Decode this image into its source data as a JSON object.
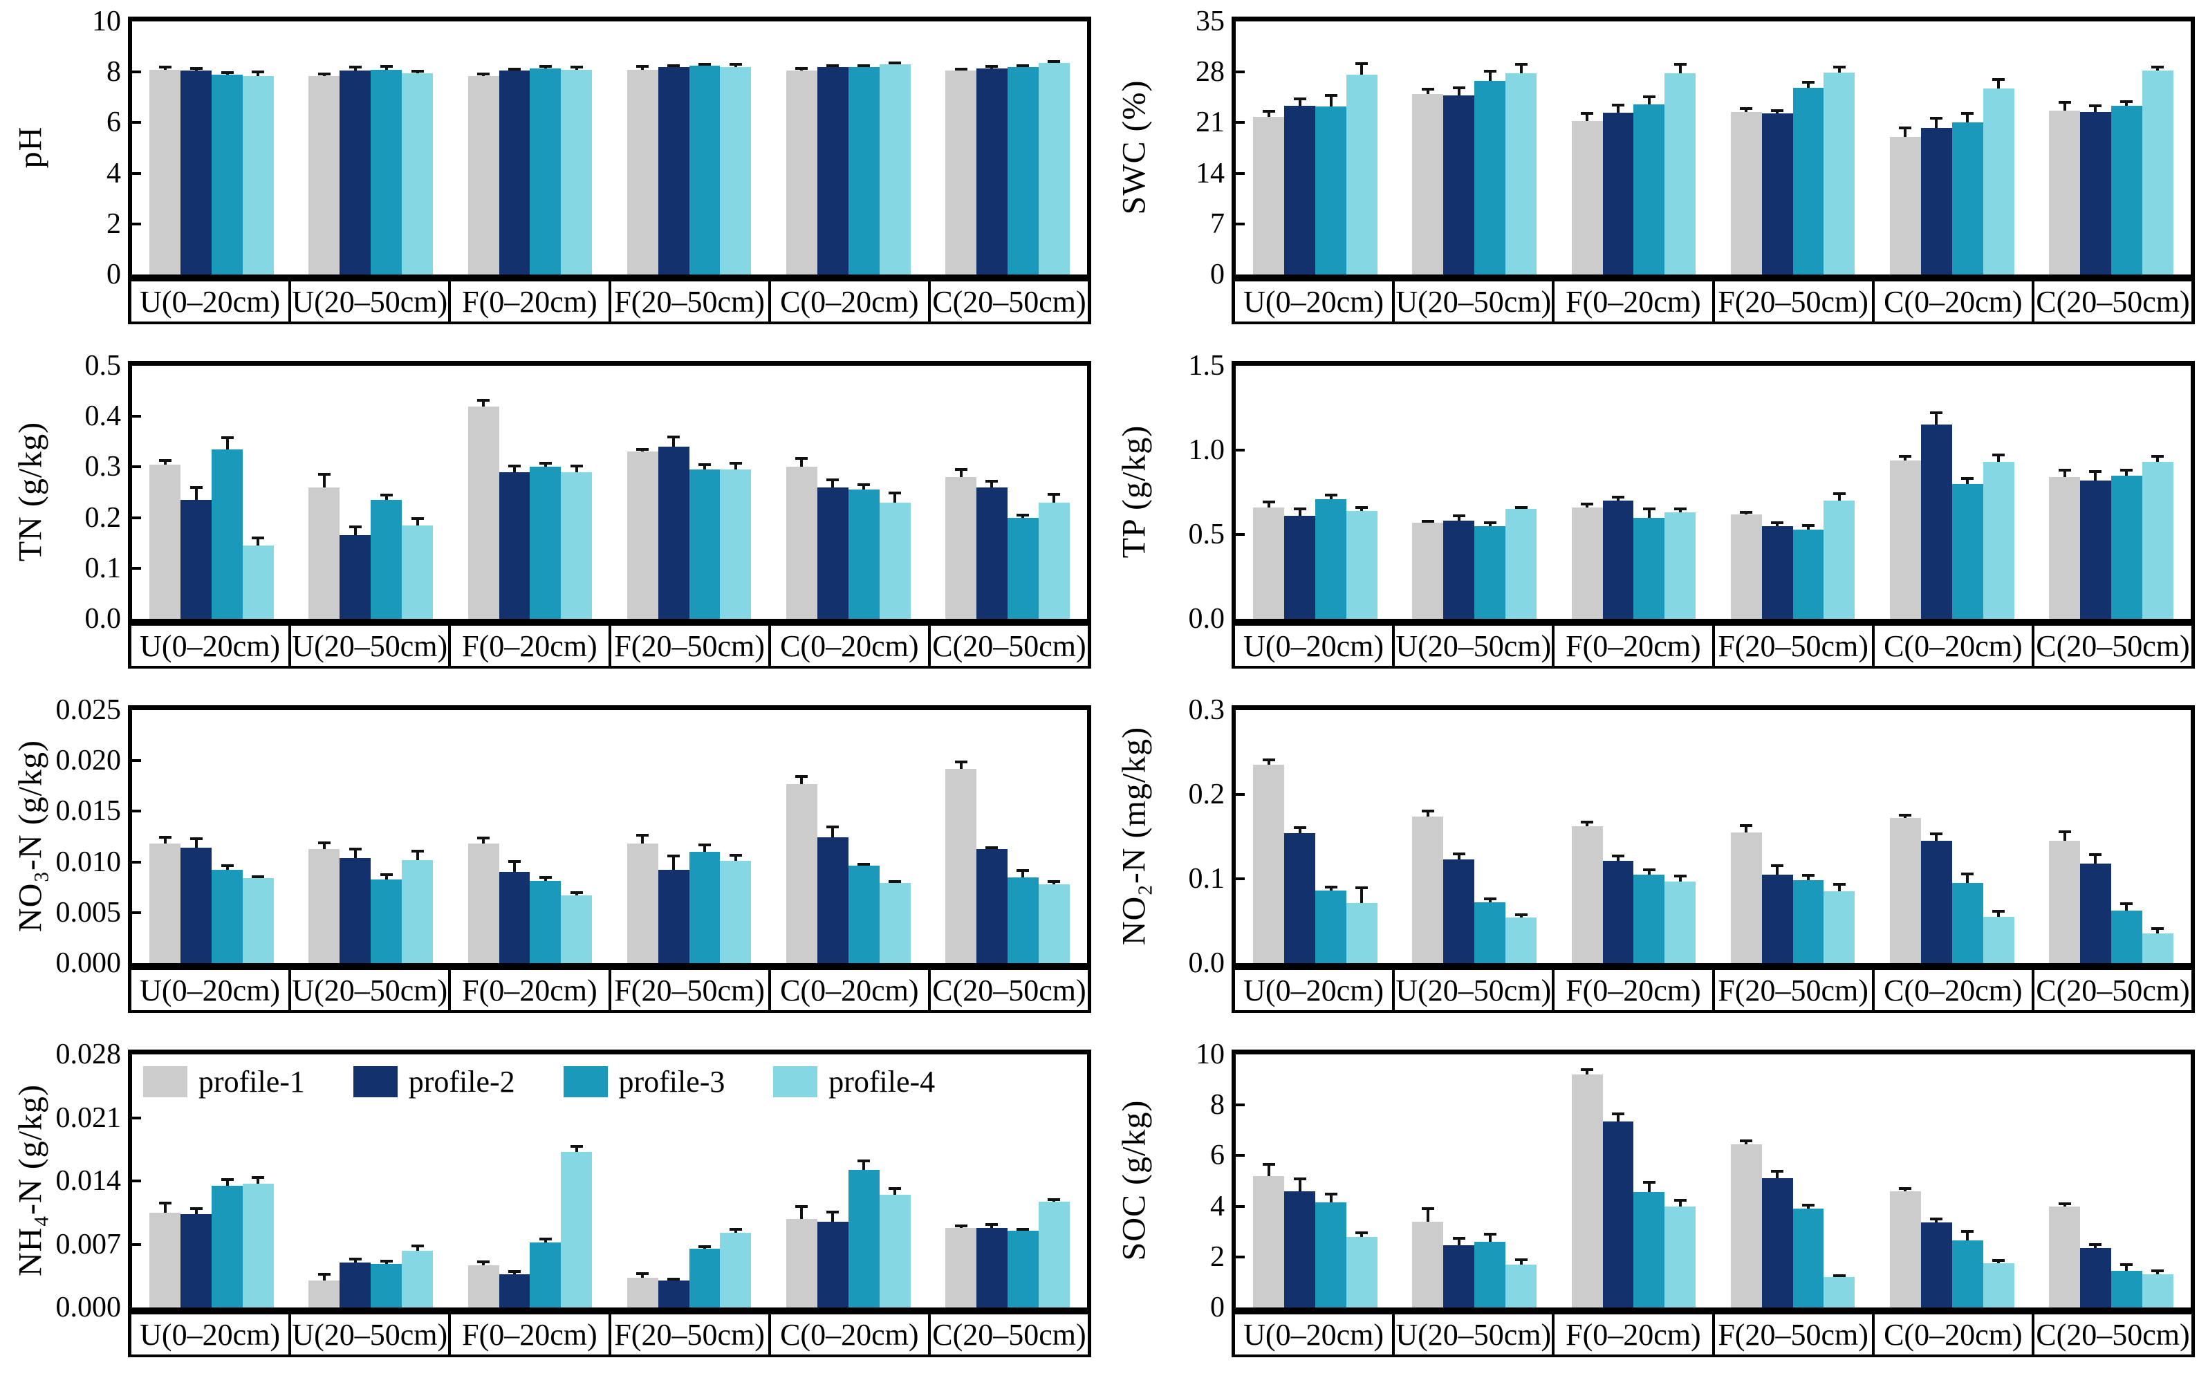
{
  "legend": {
    "host_panel": "nh4n",
    "items": [
      {
        "label": "profile-1",
        "color": "#cccccc"
      },
      {
        "label": "profile-2",
        "color": "#12316d"
      },
      {
        "label": "profile-3",
        "color": "#1b99bb"
      },
      {
        "label": "profile-4",
        "color": "#85d7e3"
      }
    ]
  },
  "chart_data": [
    {
      "id": "ph",
      "type": "bar",
      "title": "",
      "xlabel": "",
      "ylabel": "pH",
      "ylim": [
        0,
        10
      ],
      "yticks": [
        "0",
        "2",
        "4",
        "6",
        "8",
        "10"
      ],
      "grid": false,
      "categories": [
        "U(0–20cm)",
        "U(20–50cm)",
        "F(0–20cm)",
        "F(20–50cm)",
        "C(0–20cm)",
        "C(20–50cm)"
      ],
      "series": [
        {
          "name": "profile-1",
          "values": [
            8.1,
            7.85,
            7.85,
            8.1,
            8.05,
            8.05
          ],
          "errors": [
            0.15,
            0.12,
            0.12,
            0.18,
            0.15,
            0.12
          ]
        },
        {
          "name": "profile-2",
          "values": [
            8.05,
            8.05,
            8.05,
            8.2,
            8.2,
            8.15
          ],
          "errors": [
            0.15,
            0.2,
            0.1,
            0.12,
            0.12,
            0.12
          ]
        },
        {
          "name": "profile-3",
          "values": [
            7.9,
            8.1,
            8.15,
            8.25,
            8.2,
            8.2
          ],
          "errors": [
            0.12,
            0.18,
            0.12,
            0.12,
            0.12,
            0.1
          ]
        },
        {
          "name": "profile-4",
          "values": [
            7.85,
            7.95,
            8.1,
            8.2,
            8.3,
            8.35
          ],
          "errors": [
            0.2,
            0.15,
            0.15,
            0.15,
            0.1,
            0.08
          ]
        }
      ]
    },
    {
      "id": "swc",
      "type": "bar",
      "title": "",
      "xlabel": "",
      "ylabel": "SWC (%)",
      "ylim": [
        0,
        35
      ],
      "yticks": [
        "0",
        "7",
        "14",
        "21",
        "28",
        "35"
      ],
      "grid": false,
      "categories": [
        "U(0–20cm)",
        "U(20–50cm)",
        "F(0–20cm)",
        "F(20–50cm)",
        "C(0–20cm)",
        "C(20–50cm)"
      ],
      "series": [
        {
          "name": "profile-1",
          "values": [
            21.8,
            25.0,
            21.2,
            22.5,
            19.0,
            22.7
          ],
          "errors": [
            1.0,
            0.8,
            1.3,
            0.6,
            1.5,
            1.3
          ]
        },
        {
          "name": "profile-2",
          "values": [
            23.3,
            24.8,
            22.4,
            22.3,
            20.3,
            22.5
          ],
          "errors": [
            1.2,
            1.2,
            1.2,
            0.6,
            1.5,
            1.0
          ]
        },
        {
          "name": "profile-3",
          "values": [
            23.2,
            26.8,
            23.5,
            25.8,
            21.0,
            23.3
          ],
          "errors": [
            1.8,
            1.5,
            1.3,
            1.0,
            1.5,
            0.8
          ]
        },
        {
          "name": "profile-4",
          "values": [
            27.6,
            27.8,
            27.8,
            27.9,
            25.7,
            28.2
          ],
          "errors": [
            1.8,
            1.5,
            1.5,
            1.0,
            1.5,
            0.7
          ]
        }
      ]
    },
    {
      "id": "tn",
      "type": "bar",
      "title": "",
      "xlabel": "",
      "ylabel": "TN (g/kg)",
      "ylim": [
        0,
        0.5
      ],
      "yticks": [
        "0.0",
        "0.1",
        "0.2",
        "0.3",
        "0.4",
        "0.5"
      ],
      "grid": false,
      "categories": [
        "U(0–20cm)",
        "U(20–50cm)",
        "F(0–20cm)",
        "F(20–50cm)",
        "C(0–20cm)",
        "C(20–50cm)"
      ],
      "series": [
        {
          "name": "profile-1",
          "values": [
            0.305,
            0.26,
            0.42,
            0.33,
            0.3,
            0.28
          ],
          "errors": [
            0.01,
            0.028,
            0.015,
            0.008,
            0.02,
            0.018
          ]
        },
        {
          "name": "profile-2",
          "values": [
            0.235,
            0.165,
            0.29,
            0.34,
            0.26,
            0.26
          ],
          "errors": [
            0.028,
            0.02,
            0.015,
            0.022,
            0.017,
            0.015
          ]
        },
        {
          "name": "profile-3",
          "values": [
            0.335,
            0.235,
            0.3,
            0.295,
            0.255,
            0.2
          ],
          "errors": [
            0.025,
            0.012,
            0.01,
            0.013,
            0.013,
            0.008
          ]
        },
        {
          "name": "profile-4",
          "values": [
            0.145,
            0.185,
            0.29,
            0.295,
            0.23,
            0.23
          ],
          "errors": [
            0.018,
            0.016,
            0.015,
            0.015,
            0.022,
            0.018
          ]
        }
      ]
    },
    {
      "id": "tp",
      "type": "bar",
      "title": "",
      "xlabel": "",
      "ylabel": "TP (g/kg)",
      "ylim": [
        0,
        1.5
      ],
      "yticks": [
        "0.0",
        "0.5",
        "1.0",
        "1.5"
      ],
      "grid": false,
      "categories": [
        "U(0–20cm)",
        "U(20–50cm)",
        "F(0–20cm)",
        "F(20–50cm)",
        "C(0–20cm)",
        "C(20–50cm)"
      ],
      "series": [
        {
          "name": "profile-1",
          "values": [
            0.66,
            0.57,
            0.66,
            0.62,
            0.94,
            0.84
          ],
          "errors": [
            0.04,
            0.01,
            0.03,
            0.02,
            0.03,
            0.05
          ]
        },
        {
          "name": "profile-2",
          "values": [
            0.61,
            0.58,
            0.7,
            0.55,
            1.15,
            0.82
          ],
          "errors": [
            0.05,
            0.04,
            0.03,
            0.03,
            0.08,
            0.06
          ]
        },
        {
          "name": "profile-3",
          "values": [
            0.71,
            0.55,
            0.6,
            0.53,
            0.8,
            0.85
          ],
          "errors": [
            0.03,
            0.03,
            0.06,
            0.03,
            0.04,
            0.04
          ]
        },
        {
          "name": "profile-4",
          "values": [
            0.64,
            0.65,
            0.63,
            0.7,
            0.93,
            0.93
          ],
          "errors": [
            0.03,
            0.02,
            0.03,
            0.05,
            0.05,
            0.04
          ]
        }
      ]
    },
    {
      "id": "no3n",
      "type": "bar",
      "title": "",
      "xlabel": "",
      "ylabel": "NO₃-N (g/kg)",
      "ylim": [
        0,
        0.025
      ],
      "yticks": [
        "0.000",
        "0.005",
        "0.010",
        "0.015",
        "0.020",
        "0.025"
      ],
      "grid": false,
      "categories": [
        "U(0–20cm)",
        "U(20–50cm)",
        "F(0–20cm)",
        "F(20–50cm)",
        "C(0–20cm)",
        "C(20–50cm)"
      ],
      "series": [
        {
          "name": "profile-1",
          "values": [
            0.0118,
            0.0113,
            0.0118,
            0.0118,
            0.0177,
            0.0192
          ],
          "errors": [
            0.0008,
            0.0007,
            0.0007,
            0.001,
            0.0009,
            0.0008
          ]
        },
        {
          "name": "profile-2",
          "values": [
            0.0114,
            0.0104,
            0.009,
            0.0092,
            0.0124,
            0.0113
          ],
          "errors": [
            0.001,
            0.001,
            0.0012,
            0.0015,
            0.0012,
            0.0002
          ]
        },
        {
          "name": "profile-3",
          "values": [
            0.0092,
            0.0083,
            0.0081,
            0.011,
            0.0096,
            0.0085
          ],
          "errors": [
            0.0006,
            0.0006,
            0.0005,
            0.0008,
            0.0003,
            0.0008
          ]
        },
        {
          "name": "profile-4",
          "values": [
            0.0084,
            0.0102,
            0.0067,
            0.0101,
            0.0079,
            0.0078
          ],
          "errors": [
            0.0002,
            0.001,
            0.0004,
            0.0007,
            0.0003,
            0.0004
          ]
        }
      ]
    },
    {
      "id": "no2n",
      "type": "bar",
      "title": "",
      "xlabel": "",
      "ylabel": "NO₂-N (mg/kg)",
      "ylim": [
        0,
        0.3
      ],
      "yticks": [
        "0.0",
        "0.1",
        "0.2",
        "0.3"
      ],
      "grid": false,
      "categories": [
        "U(0–20cm)",
        "U(20–50cm)",
        "F(0–20cm)",
        "F(20–50cm)",
        "C(0–20cm)",
        "C(20–50cm)"
      ],
      "series": [
        {
          "name": "profile-1",
          "values": [
            0.235,
            0.174,
            0.162,
            0.155,
            0.172,
            0.145
          ],
          "errors": [
            0.008,
            0.008,
            0.007,
            0.01,
            0.005,
            0.012
          ]
        },
        {
          "name": "profile-2",
          "values": [
            0.154,
            0.123,
            0.121,
            0.105,
            0.145,
            0.118
          ],
          "errors": [
            0.008,
            0.008,
            0.008,
            0.012,
            0.01,
            0.012
          ]
        },
        {
          "name": "profile-3",
          "values": [
            0.086,
            0.072,
            0.105,
            0.098,
            0.095,
            0.062
          ],
          "errors": [
            0.006,
            0.006,
            0.007,
            0.008,
            0.012,
            0.01
          ]
        },
        {
          "name": "profile-4",
          "values": [
            0.071,
            0.054,
            0.097,
            0.085,
            0.055,
            0.035
          ],
          "errors": [
            0.02,
            0.005,
            0.008,
            0.01,
            0.008,
            0.008
          ]
        }
      ]
    },
    {
      "id": "nh4n",
      "type": "bar",
      "title": "",
      "xlabel": "",
      "ylabel": "NH₄-N (g/kg)",
      "ylim": [
        0,
        0.028
      ],
      "yticks": [
        "0.000",
        "0.007",
        "0.014",
        "0.021",
        "0.028"
      ],
      "grid": false,
      "categories": [
        "U(0–20cm)",
        "U(20–50cm)",
        "F(0–20cm)",
        "F(20–50cm)",
        "C(0–20cm)",
        "C(20–50cm)"
      ],
      "series": [
        {
          "name": "profile-1",
          "values": [
            0.0105,
            0.003,
            0.0047,
            0.0033,
            0.0098,
            0.0088
          ],
          "errors": [
            0.0012,
            0.0008,
            0.0005,
            0.0006,
            0.0015,
            0.0004
          ]
        },
        {
          "name": "profile-2",
          "values": [
            0.0103,
            0.005,
            0.0037,
            0.003,
            0.0095,
            0.0088
          ],
          "errors": [
            0.0008,
            0.0005,
            0.0004,
            0.0003,
            0.0012,
            0.0005
          ]
        },
        {
          "name": "profile-3",
          "values": [
            0.0135,
            0.0048,
            0.0072,
            0.0065,
            0.0152,
            0.0085
          ],
          "errors": [
            0.0008,
            0.0005,
            0.0005,
            0.0004,
            0.0012,
            0.0003
          ]
        },
        {
          "name": "profile-4",
          "values": [
            0.0137,
            0.0063,
            0.0172,
            0.0083,
            0.0125,
            0.0117
          ],
          "errors": [
            0.0008,
            0.0007,
            0.0008,
            0.0005,
            0.0008,
            0.0004
          ]
        }
      ]
    },
    {
      "id": "soc",
      "type": "bar",
      "title": "",
      "xlabel": "",
      "ylabel": "SOC (g/kg)",
      "ylim": [
        0,
        10
      ],
      "yticks": [
        "0",
        "2",
        "4",
        "6",
        "8",
        "10"
      ],
      "grid": false,
      "categories": [
        "U(0–20cm)",
        "U(20–50cm)",
        "F(0–20cm)",
        "F(20–50cm)",
        "C(0–20cm)",
        "C(20–50cm)"
      ],
      "series": [
        {
          "name": "profile-1",
          "values": [
            5.2,
            3.4,
            9.2,
            6.45,
            4.6,
            4.0
          ],
          "errors": [
            0.5,
            0.55,
            0.25,
            0.2,
            0.15,
            0.15
          ]
        },
        {
          "name": "profile-2",
          "values": [
            4.6,
            2.45,
            7.35,
            5.1,
            3.35,
            2.35
          ],
          "errors": [
            0.55,
            0.35,
            0.35,
            0.35,
            0.2,
            0.2
          ]
        },
        {
          "name": "profile-3",
          "values": [
            4.15,
            2.6,
            4.55,
            3.9,
            2.65,
            1.45
          ],
          "errors": [
            0.4,
            0.35,
            0.45,
            0.2,
            0.4,
            0.3
          ]
        },
        {
          "name": "profile-4",
          "values": [
            2.8,
            1.7,
            4.0,
            1.2,
            1.75,
            1.3
          ],
          "errors": [
            0.2,
            0.25,
            0.3,
            0.12,
            0.15,
            0.2
          ]
        }
      ]
    }
  ]
}
